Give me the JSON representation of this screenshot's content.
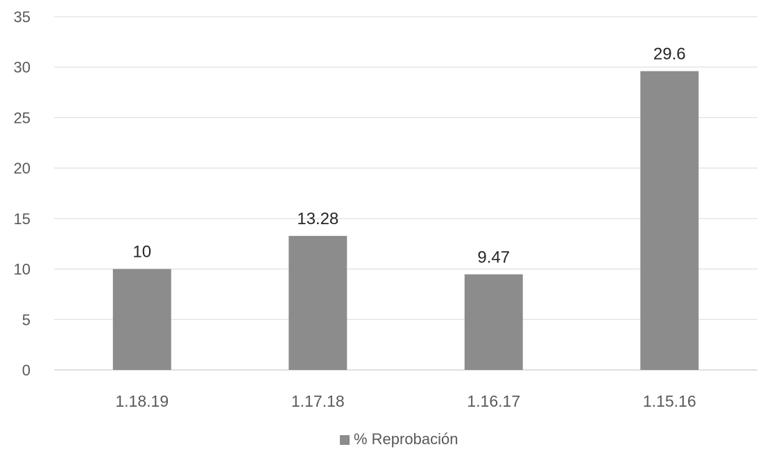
{
  "chart_data": {
    "type": "bar",
    "categories": [
      "1.18.19",
      "1.17.18",
      "1.16.17",
      "1.15.16"
    ],
    "series": [
      {
        "name": "% Reprobación",
        "values": [
          10,
          13.28,
          9.47,
          29.6
        ],
        "data_labels": [
          "10",
          "13.28",
          "9.47",
          "29.6"
        ],
        "color": "#8c8c8c"
      }
    ],
    "yticks": [
      0,
      5,
      10,
      15,
      20,
      25,
      30,
      35
    ],
    "ylim": [
      0,
      35
    ],
    "grid": true,
    "legend": "bottom-center",
    "title": "",
    "xlabel": "",
    "ylabel": ""
  }
}
